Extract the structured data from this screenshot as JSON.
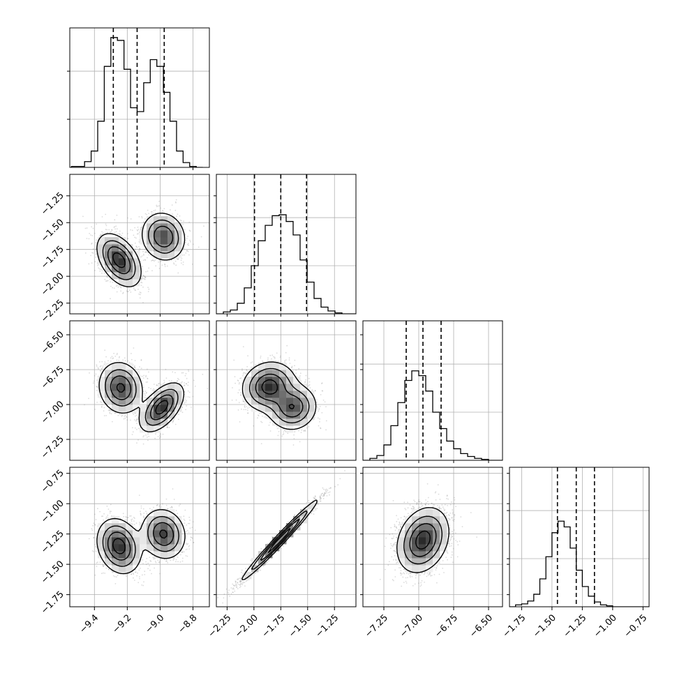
{
  "chart_data": {
    "type": "corner",
    "title": "",
    "grid": true,
    "dims": [
      {
        "name": "",
        "range": [
          -9.55,
          -8.7
        ],
        "ticks": [
          -9.4,
          -9.2,
          -9.0,
          -8.8
        ],
        "tick_labels": [
          "−9.4",
          "−9.2",
          "−9.0",
          "−8.8"
        ],
        "quantiles": [
          -9.285,
          -9.14,
          -8.975
        ],
        "hist": {
          "edges_start": -9.54,
          "bin_width": 0.04,
          "values": [
            0.01,
            0.01,
            0.06,
            0.17,
            0.48,
            1.05,
            1.35,
            1.32,
            1.02,
            0.62,
            0.58,
            0.88,
            1.12,
            1.05,
            0.78,
            0.48,
            0.17,
            0.05,
            0.01,
            0.0
          ]
        }
      },
      {
        "name": "",
        "range": [
          -2.35,
          -1.05
        ],
        "ticks": [
          -2.25,
          -2.0,
          -1.75,
          -1.5,
          -1.25
        ],
        "tick_labels": [
          "−2.25",
          "−2.00",
          "−1.75",
          "−1.50",
          "−1.25"
        ],
        "quantiles": [
          -1.995,
          -1.75,
          -1.51
        ],
        "hist": {
          "edges_start": -2.35,
          "bin_width": 0.065,
          "values": [
            0.0,
            0.02,
            0.04,
            0.11,
            0.27,
            0.5,
            0.76,
            0.92,
            1.02,
            1.03,
            0.96,
            0.82,
            0.56,
            0.33,
            0.16,
            0.07,
            0.03,
            0.01,
            0.0,
            0.0
          ]
        }
      },
      {
        "name": "",
        "range": [
          -7.4,
          -6.4
        ],
        "ticks": [
          -7.25,
          -7.0,
          -6.75,
          -6.5
        ],
        "tick_labels": [
          "−7.25",
          "−7.00",
          "−6.75",
          "−6.50"
        ],
        "quantiles": [
          -7.09,
          -6.97,
          -6.84
        ],
        "hist": {
          "edges_start": -7.4,
          "bin_width": 0.05,
          "values": [
            0.0,
            0.02,
            0.05,
            0.16,
            0.36,
            0.6,
            0.83,
            0.93,
            0.88,
            0.72,
            0.5,
            0.33,
            0.2,
            0.12,
            0.07,
            0.04,
            0.02,
            0.01,
            0.0,
            0.0
          ]
        }
      },
      {
        "name": "",
        "range": [
          -1.85,
          -0.7
        ],
        "ticks": [
          -1.75,
          -1.5,
          -1.25,
          -1.0,
          -0.75
        ],
        "tick_labels": [
          "−1.75",
          "−1.50",
          "−1.25",
          "−1.00",
          "−0.75"
        ],
        "quantiles": [
          -1.455,
          -1.3,
          -1.15
        ],
        "hist": {
          "edges_start": -1.85,
          "bin_width": 0.05,
          "values": [
            0.0,
            0.02,
            0.03,
            0.06,
            0.13,
            0.29,
            0.52,
            0.77,
            0.89,
            0.83,
            0.61,
            0.38,
            0.21,
            0.11,
            0.05,
            0.02,
            0.01,
            0.0,
            0.0,
            0.0,
            0.0,
            0.0,
            0.0
          ]
        }
      }
    ],
    "diag_ylim": [
      0,
      1.45
    ],
    "pairs": [
      {
        "row": 1,
        "col": 0,
        "components": [
          {
            "mean": [
              -9.25,
              -1.85
            ],
            "sd": [
              0.065,
              0.12
            ],
            "corr": -0.45,
            "weight": 1.0
          },
          {
            "mean": [
              -8.98,
              -1.63
            ],
            "sd": [
              0.065,
              0.11
            ],
            "corr": -0.1,
            "weight": 0.85
          }
        ]
      },
      {
        "row": 2,
        "col": 0,
        "components": [
          {
            "mean": [
              -9.24,
              -6.88
            ],
            "sd": [
              0.065,
              0.09
            ],
            "corr": -0.1,
            "weight": 0.9
          },
          {
            "mean": [
              -8.99,
              -7.02
            ],
            "sd": [
              0.065,
              0.085
            ],
            "corr": 0.55,
            "weight": 1.0
          }
        ]
      },
      {
        "row": 2,
        "col": 1,
        "components": [
          {
            "mean": [
              -1.86,
              -6.87
            ],
            "sd": [
              0.12,
              0.085
            ],
            "corr": 0.1,
            "weight": 1.0
          },
          {
            "mean": [
              -1.64,
              -7.02
            ],
            "sd": [
              0.11,
              0.08
            ],
            "corr": 0.05,
            "weight": 0.85
          }
        ]
      },
      {
        "row": 3,
        "col": 0,
        "components": [
          {
            "mean": [
              -9.25,
              -1.35
            ],
            "sd": [
              0.065,
              0.11
            ],
            "corr": -0.2,
            "weight": 1.0
          },
          {
            "mean": [
              -8.98,
              -1.25
            ],
            "sd": [
              0.065,
              0.1
            ],
            "corr": -0.1,
            "weight": 0.9
          }
        ]
      },
      {
        "row": 3,
        "col": 1,
        "components": [
          {
            "mean": [
              -1.76,
              -1.3
            ],
            "sd": [
              0.17,
              0.16
            ],
            "corr": 0.985,
            "weight": 1.0
          }
        ]
      },
      {
        "row": 3,
        "col": 2,
        "components": [
          {
            "mean": [
              -6.97,
              -1.3
            ],
            "sd": [
              0.09,
              0.13
            ],
            "corr": 0.25,
            "weight": 1.0
          }
        ]
      }
    ],
    "colors": {
      "line": "#000000",
      "grid": "#b0b0b0",
      "fill_light": "#f2f2f2",
      "fill_dark": "#000000",
      "points": "#7f7f7f"
    }
  }
}
